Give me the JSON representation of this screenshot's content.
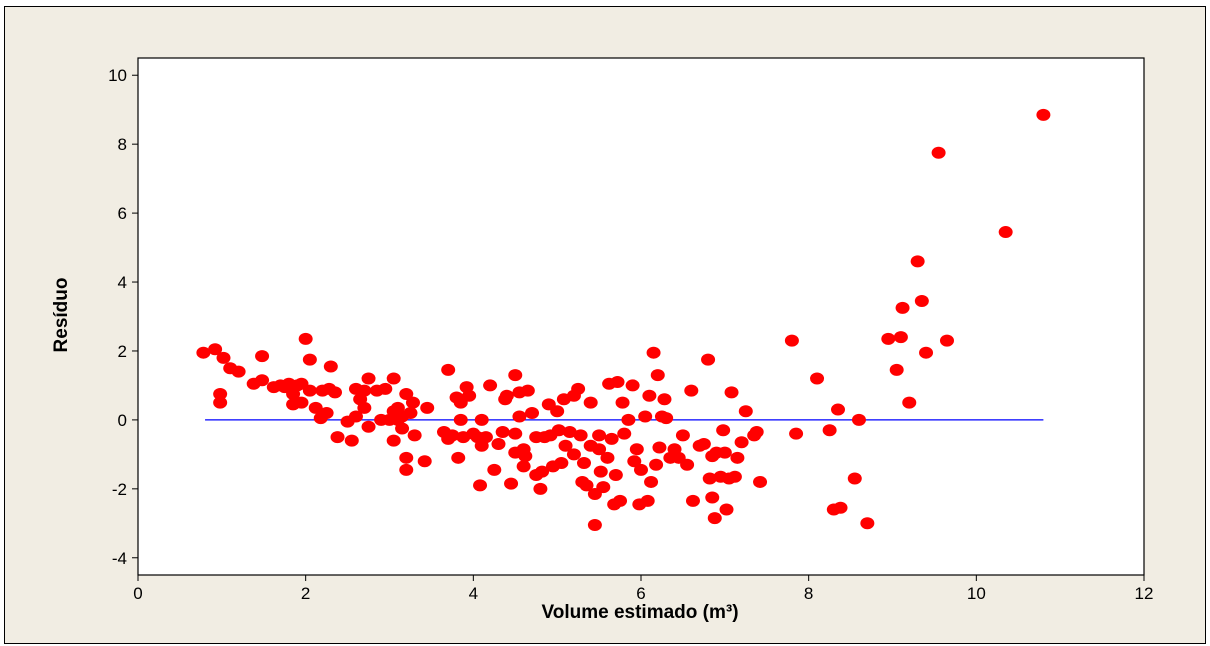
{
  "chart_data": {
    "type": "scatter",
    "title": "",
    "xlabel": "Volume estimado (m³)",
    "ylabel": "Resíduo",
    "xlim": [
      0,
      12
    ],
    "ylim": [
      -4.5,
      10.5
    ],
    "x_ticks": [
      0,
      2,
      4,
      6,
      8,
      10,
      12
    ],
    "y_ticks": [
      -4,
      -2,
      0,
      2,
      4,
      6,
      8,
      10
    ],
    "grid": false,
    "legend": "none",
    "reference_line": {
      "y": 0,
      "x_from": 0.8,
      "x_to": 10.8,
      "color": "#0000ff"
    },
    "marker_color": "#ff0000",
    "series": [
      {
        "points": [
          [
            0.78,
            1.95
          ],
          [
            0.92,
            2.05
          ],
          [
            0.98,
            0.75
          ],
          [
            0.98,
            0.5
          ],
          [
            1.02,
            1.8
          ],
          [
            1.1,
            1.5
          ],
          [
            1.2,
            1.4
          ],
          [
            1.38,
            1.05
          ],
          [
            1.48,
            1.15
          ],
          [
            1.48,
            1.85
          ],
          [
            1.62,
            0.95
          ],
          [
            1.7,
            1.0
          ],
          [
            1.75,
            0.95
          ],
          [
            1.8,
            1.05
          ],
          [
            1.85,
            0.75
          ],
          [
            1.85,
            0.45
          ],
          [
            1.9,
            1.0
          ],
          [
            1.95,
            1.05
          ],
          [
            1.95,
            0.5
          ],
          [
            2.0,
            2.35
          ],
          [
            2.05,
            0.85
          ],
          [
            2.05,
            1.75
          ],
          [
            2.12,
            0.35
          ],
          [
            2.18,
            0.05
          ],
          [
            2.2,
            0.85
          ],
          [
            2.25,
            0.2
          ],
          [
            2.28,
            0.9
          ],
          [
            2.3,
            1.55
          ],
          [
            2.35,
            0.8
          ],
          [
            2.38,
            -0.5
          ],
          [
            2.5,
            -0.05
          ],
          [
            2.55,
            -0.6
          ],
          [
            2.6,
            0.9
          ],
          [
            2.6,
            0.1
          ],
          [
            2.65,
            0.6
          ],
          [
            2.7,
            0.85
          ],
          [
            2.7,
            0.35
          ],
          [
            2.75,
            1.2
          ],
          [
            2.75,
            -0.2
          ],
          [
            2.85,
            0.85
          ],
          [
            2.9,
            0.0
          ],
          [
            2.95,
            0.9
          ],
          [
            3.0,
            0.0
          ],
          [
            3.05,
            0.25
          ],
          [
            3.05,
            1.2
          ],
          [
            3.05,
            -0.6
          ],
          [
            3.1,
            0.0
          ],
          [
            3.1,
            0.35
          ],
          [
            3.15,
            -0.25
          ],
          [
            3.15,
            0.1
          ],
          [
            3.2,
            0.75
          ],
          [
            3.2,
            -1.1
          ],
          [
            3.2,
            -1.45
          ],
          [
            3.25,
            0.2
          ],
          [
            3.28,
            0.5
          ],
          [
            3.3,
            -0.45
          ],
          [
            3.42,
            -1.2
          ],
          [
            3.45,
            0.35
          ],
          [
            3.65,
            -0.35
          ],
          [
            3.7,
            -0.55
          ],
          [
            3.7,
            1.45
          ],
          [
            3.75,
            -0.45
          ],
          [
            3.8,
            0.65
          ],
          [
            3.82,
            -1.1
          ],
          [
            3.85,
            0.5
          ],
          [
            3.85,
            0.0
          ],
          [
            3.88,
            -0.5
          ],
          [
            3.92,
            0.95
          ],
          [
            3.95,
            0.7
          ],
          [
            4.0,
            -0.4
          ],
          [
            4.05,
            -0.5
          ],
          [
            4.08,
            -1.9
          ],
          [
            4.1,
            -0.75
          ],
          [
            4.1,
            0.0
          ],
          [
            4.15,
            -0.5
          ],
          [
            4.2,
            1.0
          ],
          [
            4.25,
            -1.45
          ],
          [
            4.3,
            -0.7
          ],
          [
            4.35,
            -0.35
          ],
          [
            4.38,
            0.6
          ],
          [
            4.4,
            0.7
          ],
          [
            4.45,
            -1.85
          ],
          [
            4.5,
            -0.95
          ],
          [
            4.5,
            -0.4
          ],
          [
            4.5,
            1.3
          ],
          [
            4.55,
            0.1
          ],
          [
            4.55,
            0.8
          ],
          [
            4.6,
            -1.35
          ],
          [
            4.6,
            -0.85
          ],
          [
            4.62,
            -1.05
          ],
          [
            4.65,
            0.85
          ],
          [
            4.7,
            0.2
          ],
          [
            4.75,
            -0.5
          ],
          [
            4.75,
            -1.6
          ],
          [
            4.8,
            -2.0
          ],
          [
            4.82,
            -1.5
          ],
          [
            4.85,
            -0.5
          ],
          [
            4.9,
            0.45
          ],
          [
            4.92,
            -0.45
          ],
          [
            4.95,
            -1.35
          ],
          [
            5.0,
            0.25
          ],
          [
            5.02,
            -0.3
          ],
          [
            5.05,
            -1.25
          ],
          [
            5.08,
            0.6
          ],
          [
            5.1,
            -0.75
          ],
          [
            5.15,
            -0.35
          ],
          [
            5.2,
            0.7
          ],
          [
            5.2,
            -1.0
          ],
          [
            5.25,
            0.9
          ],
          [
            5.28,
            -0.45
          ],
          [
            5.3,
            -1.8
          ],
          [
            5.32,
            -1.25
          ],
          [
            5.35,
            -1.9
          ],
          [
            5.4,
            0.5
          ],
          [
            5.4,
            -0.75
          ],
          [
            5.45,
            -3.05
          ],
          [
            5.45,
            -2.15
          ],
          [
            5.5,
            -0.45
          ],
          [
            5.5,
            -0.85
          ],
          [
            5.52,
            -1.5
          ],
          [
            5.55,
            -1.95
          ],
          [
            5.6,
            -1.1
          ],
          [
            5.62,
            1.05
          ],
          [
            5.65,
            -0.55
          ],
          [
            5.68,
            -2.45
          ],
          [
            5.7,
            -1.6
          ],
          [
            5.72,
            1.1
          ],
          [
            5.75,
            -2.35
          ],
          [
            5.78,
            0.5
          ],
          [
            5.8,
            -0.4
          ],
          [
            5.85,
            0.0
          ],
          [
            5.9,
            1.0
          ],
          [
            5.92,
            -1.2
          ],
          [
            5.95,
            -0.85
          ],
          [
            5.98,
            -2.45
          ],
          [
            6.0,
            -1.45
          ],
          [
            6.05,
            0.1
          ],
          [
            6.08,
            -2.35
          ],
          [
            6.1,
            0.7
          ],
          [
            6.12,
            -1.8
          ],
          [
            6.15,
            1.95
          ],
          [
            6.18,
            -1.3
          ],
          [
            6.2,
            1.3
          ],
          [
            6.22,
            -0.8
          ],
          [
            6.25,
            0.1
          ],
          [
            6.28,
            0.6
          ],
          [
            6.3,
            0.05
          ],
          [
            6.35,
            -1.1
          ],
          [
            6.4,
            -0.85
          ],
          [
            6.45,
            -1.1
          ],
          [
            6.5,
            -0.45
          ],
          [
            6.55,
            -1.3
          ],
          [
            6.6,
            0.85
          ],
          [
            6.62,
            -2.35
          ],
          [
            6.7,
            -0.75
          ],
          [
            6.75,
            -0.7
          ],
          [
            6.8,
            1.75
          ],
          [
            6.82,
            -1.7
          ],
          [
            6.85,
            -2.25
          ],
          [
            6.85,
            -1.05
          ],
          [
            6.88,
            -2.85
          ],
          [
            6.9,
            -0.95
          ],
          [
            6.95,
            -1.65
          ],
          [
            6.98,
            -0.3
          ],
          [
            7.0,
            -0.95
          ],
          [
            7.02,
            -2.6
          ],
          [
            7.05,
            -1.7
          ],
          [
            7.08,
            0.8
          ],
          [
            7.12,
            -1.65
          ],
          [
            7.15,
            -1.1
          ],
          [
            7.2,
            -0.65
          ],
          [
            7.25,
            0.25
          ],
          [
            7.35,
            -0.45
          ],
          [
            7.38,
            -0.35
          ],
          [
            7.42,
            -1.8
          ],
          [
            7.8,
            2.3
          ],
          [
            7.85,
            -0.4
          ],
          [
            8.1,
            1.2
          ],
          [
            8.25,
            -0.3
          ],
          [
            8.3,
            -2.6
          ],
          [
            8.35,
            0.3
          ],
          [
            8.38,
            -2.55
          ],
          [
            8.55,
            -1.7
          ],
          [
            8.6,
            0.0
          ],
          [
            8.7,
            -3.0
          ],
          [
            8.95,
            2.35
          ],
          [
            9.05,
            1.45
          ],
          [
            9.1,
            2.4
          ],
          [
            9.12,
            3.25
          ],
          [
            9.2,
            0.5
          ],
          [
            9.3,
            4.6
          ],
          [
            9.35,
            3.45
          ],
          [
            9.4,
            1.95
          ],
          [
            9.55,
            7.75
          ],
          [
            9.65,
            2.3
          ],
          [
            10.35,
            5.45
          ],
          [
            10.8,
            8.85
          ]
        ]
      }
    ]
  }
}
